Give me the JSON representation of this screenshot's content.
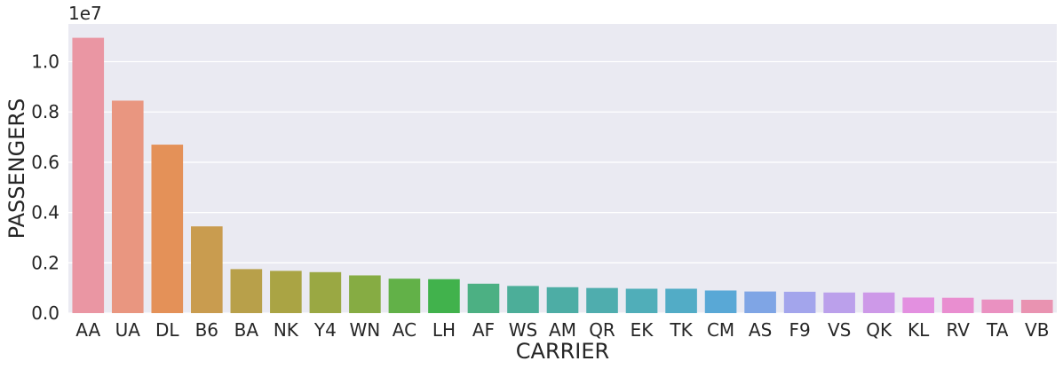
{
  "chart_data": {
    "type": "bar",
    "title": "",
    "xlabel": "CARRIER",
    "ylabel": "PASSENGERS",
    "y_multiplier_label": "1e7",
    "scale": 10000000,
    "ylim": [
      0,
      1.15
    ],
    "yticks": [
      0.0,
      0.2,
      0.4,
      0.6,
      0.8,
      1.0
    ],
    "ytick_labels": [
      "0.0",
      "0.2",
      "0.4",
      "0.6",
      "0.8",
      "1.0"
    ],
    "grid": true,
    "legend": "none",
    "categories": [
      "AA",
      "UA",
      "DL",
      "B6",
      "BA",
      "NK",
      "Y4",
      "WN",
      "AC",
      "LH",
      "AF",
      "WS",
      "AM",
      "QR",
      "EK",
      "TK",
      "CM",
      "AS",
      "F9",
      "VS",
      "QK",
      "KL",
      "RV",
      "TA",
      "VB"
    ],
    "values": [
      1.095,
      0.845,
      0.67,
      0.345,
      0.175,
      0.168,
      0.163,
      0.15,
      0.137,
      0.135,
      0.117,
      0.108,
      0.103,
      0.1,
      0.097,
      0.097,
      0.09,
      0.086,
      0.085,
      0.082,
      0.082,
      0.062,
      0.061,
      0.054,
      0.053
    ],
    "colors": [
      "#ea96a3",
      "#e99680",
      "#e49158",
      "#c99c4f",
      "#b8a04a",
      "#aaa444",
      "#9aa843",
      "#86ac43",
      "#62b148",
      "#41b24c",
      "#4cb083",
      "#4cae99",
      "#4dada5",
      "#4fadae",
      "#50aeb9",
      "#52acc6",
      "#59a8d6",
      "#7fa5e5",
      "#a3a5ec",
      "#bba0eb",
      "#cd99e8",
      "#e390e0",
      "#e98ed0",
      "#ea91c1",
      "#e993b1"
    ],
    "background_color": "#eaeaf2",
    "grid_color": "#ffffff",
    "text_color": "#262626"
  }
}
